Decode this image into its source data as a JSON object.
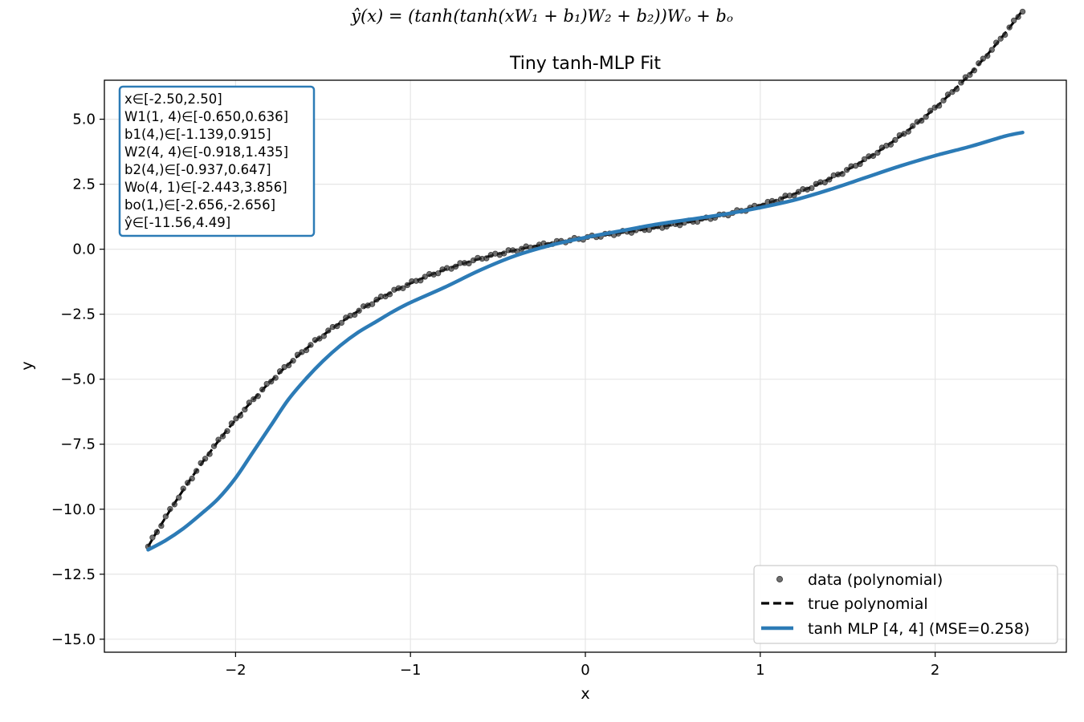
{
  "formula": "ŷ(x) = (tanh(tanh(xW₁ + b₁)W₂ + b₂))Wₒ + bₒ",
  "chart_data": {
    "type": "line",
    "title": "Tiny tanh-MLP Fit",
    "xlabel": "x",
    "ylabel": "y",
    "xlim": [
      -2.75,
      2.75
    ],
    "ylim": [
      -15.5,
      6.5
    ],
    "xticks": [
      -2,
      -1,
      0,
      1,
      2
    ],
    "xtick_labels": [
      "−2",
      "−1",
      "0",
      "1",
      "2"
    ],
    "yticks": [
      5.0,
      2.5,
      0.0,
      -2.5,
      -5.0,
      -7.5,
      -10.0,
      -12.5,
      -15.0
    ],
    "ytick_labels": [
      "5.0",
      "2.5",
      "0.0",
      "−2.5",
      "−5.0",
      "−7.5",
      "−10.0",
      "−12.5",
      "−15.0"
    ],
    "grid": true,
    "legend_position": "bottom-right",
    "series": [
      {
        "name": "data (polynomial)",
        "kind": "scatter",
        "color": "#333333",
        "x_range": [
          -2.5,
          2.5
        ],
        "n_points": 200
      },
      {
        "name": "true polynomial",
        "kind": "dashed-line",
        "color": "#000000",
        "coefficients_cubic_to_const": [
          0.5,
          -0.25,
          1.0,
          0.4375
        ]
      },
      {
        "name": "tanh MLP [4, 4] (MSE=0.258)",
        "kind": "line",
        "color": "#2c7bb6",
        "x": [
          -2.5,
          -2.4,
          -2.3,
          -2.2,
          -2.1,
          -2.0,
          -1.9,
          -1.8,
          -1.7,
          -1.6,
          -1.5,
          -1.4,
          -1.3,
          -1.2,
          -1.1,
          -1.0,
          -0.8,
          -0.6,
          -0.4,
          -0.2,
          0.0,
          0.2,
          0.4,
          0.6,
          0.8,
          1.0,
          1.2,
          1.4,
          1.6,
          1.8,
          2.0,
          2.2,
          2.4,
          2.5
        ],
        "y": [
          -11.56,
          -11.2,
          -10.75,
          -10.2,
          -9.6,
          -8.8,
          -7.8,
          -6.8,
          -5.8,
          -5.0,
          -4.3,
          -3.7,
          -3.2,
          -2.8,
          -2.4,
          -2.05,
          -1.45,
          -0.8,
          -0.25,
          0.15,
          0.45,
          0.7,
          0.95,
          1.15,
          1.35,
          1.6,
          1.9,
          2.3,
          2.75,
          3.2,
          3.6,
          3.95,
          4.35,
          4.49
        ]
      }
    ],
    "params": [
      "x∈[-2.50,2.50]",
      "W1(1, 4)∈[-0.650,0.636]",
      "b1(4,)∈[-1.139,0.915]",
      "W2(4, 4)∈[-0.918,1.435]",
      "b2(4,)∈[-0.937,0.647]",
      "Wo(4, 1)∈[-2.443,3.856]",
      "bo(1,)∈[-2.656,-2.656]",
      "ŷ∈[-11.56,4.49]"
    ]
  }
}
